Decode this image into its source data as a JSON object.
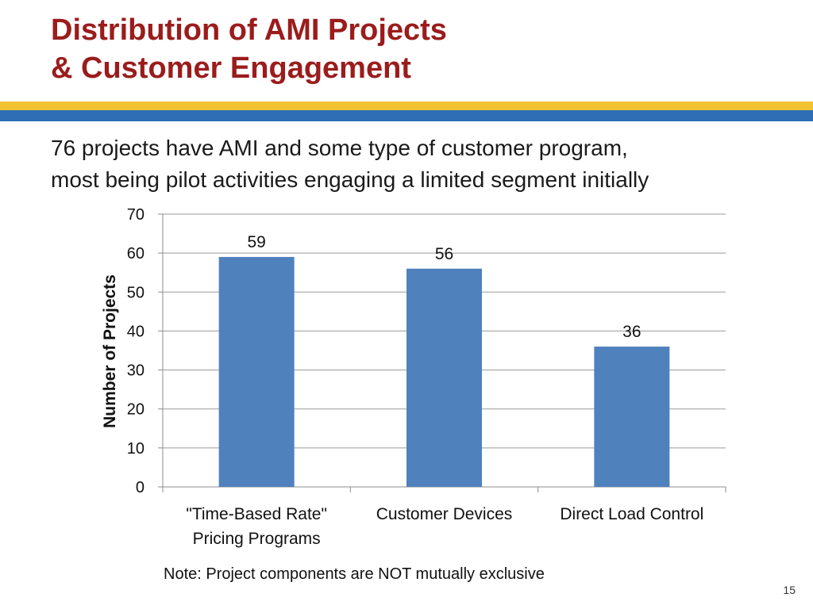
{
  "slide": {
    "title_line1": "Distribution of AMI Projects",
    "title_line2": "& Customer Engagement",
    "subtitle_line1": "76 projects have AMI and some type of customer program,",
    "subtitle_line2": "most being pilot activities engaging a limited segment initially",
    "note": "Note: Project components are NOT mutually exclusive",
    "page_number": "15"
  },
  "colors": {
    "title": "#9b1c1c",
    "band_yellow": "#f1c232",
    "band_blue": "#2f6db5",
    "bar": "#4f81bd"
  },
  "chart_data": {
    "type": "bar",
    "categories": [
      [
        "\"Time-Based Rate\"",
        "Pricing Programs"
      ],
      [
        "Customer Devices"
      ],
      [
        "Direct Load Control"
      ]
    ],
    "values": [
      59,
      56,
      36
    ],
    "ylabel": "Number of Projects",
    "ylim": [
      0,
      70
    ],
    "yticks": [
      0,
      10,
      20,
      30,
      40,
      50,
      60,
      70
    ],
    "grid": true,
    "data_labels": true
  }
}
